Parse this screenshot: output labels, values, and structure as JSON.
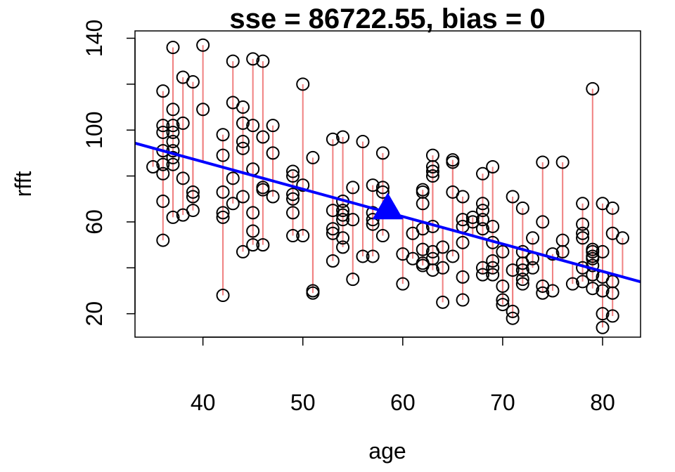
{
  "chart_data": {
    "type": "scatter",
    "title": "sse = 86722.55, bias = 0",
    "xlabel": "age",
    "ylabel": "rfft",
    "xlim": [
      33.2,
      83.8
    ],
    "ylim": [
      9.8,
      143.2
    ],
    "xticks": [
      40,
      50,
      60,
      70,
      80
    ],
    "yticks": [
      20,
      60,
      100,
      140
    ],
    "grid": false,
    "colors": {
      "points": "#000000",
      "residuals": "#f08080",
      "fit_line": "#0000ff",
      "centroid": "#0000ff"
    },
    "fit_line": {
      "x": [
        33.2,
        83.8
      ],
      "y": [
        94.3,
        33.9
      ]
    },
    "centroid": {
      "x": 58.5,
      "y": 64.8,
      "marker": "filled-triangle"
    },
    "points": [
      [
        35,
        84
      ],
      [
        36,
        117
      ],
      [
        36,
        102
      ],
      [
        36,
        99
      ],
      [
        36,
        91
      ],
      [
        36,
        85
      ],
      [
        36,
        81
      ],
      [
        36,
        69
      ],
      [
        36,
        52
      ],
      [
        37,
        136
      ],
      [
        37,
        109
      ],
      [
        37,
        102
      ],
      [
        37,
        99
      ],
      [
        37,
        95
      ],
      [
        37,
        91
      ],
      [
        37,
        88
      ],
      [
        37,
        85
      ],
      [
        37,
        62
      ],
      [
        38,
        123
      ],
      [
        38,
        103
      ],
      [
        38,
        79
      ],
      [
        38,
        63
      ],
      [
        39,
        121
      ],
      [
        39,
        73
      ],
      [
        39,
        71
      ],
      [
        39,
        65
      ],
      [
        40,
        137
      ],
      [
        40,
        109
      ],
      [
        42,
        98
      ],
      [
        42,
        89
      ],
      [
        42,
        73
      ],
      [
        42,
        64
      ],
      [
        42,
        62
      ],
      [
        42,
        28
      ],
      [
        43,
        130
      ],
      [
        43,
        112
      ],
      [
        43,
        79
      ],
      [
        43,
        68
      ],
      [
        44,
        110
      ],
      [
        44,
        103
      ],
      [
        44,
        95
      ],
      [
        44,
        92
      ],
      [
        44,
        71
      ],
      [
        44,
        47
      ],
      [
        45,
        131
      ],
      [
        45,
        102
      ],
      [
        45,
        83
      ],
      [
        45,
        64
      ],
      [
        45,
        56
      ],
      [
        45,
        50
      ],
      [
        46,
        130
      ],
      [
        46,
        97
      ],
      [
        46,
        75
      ],
      [
        46,
        74
      ],
      [
        46,
        50
      ],
      [
        47,
        102
      ],
      [
        47,
        90
      ],
      [
        47,
        71
      ],
      [
        49,
        82
      ],
      [
        49,
        80
      ],
      [
        49,
        72
      ],
      [
        49,
        70
      ],
      [
        49,
        64
      ],
      [
        49,
        54
      ],
      [
        50,
        120
      ],
      [
        50,
        76
      ],
      [
        50,
        54
      ],
      [
        51,
        88
      ],
      [
        51,
        30
      ],
      [
        51,
        29
      ],
      [
        53,
        96
      ],
      [
        53,
        65
      ],
      [
        53,
        57
      ],
      [
        53,
        55
      ],
      [
        53,
        43
      ],
      [
        54,
        97
      ],
      [
        54,
        69
      ],
      [
        54,
        65
      ],
      [
        54,
        63
      ],
      [
        54,
        61
      ],
      [
        54,
        53
      ],
      [
        54,
        49
      ],
      [
        55,
        75
      ],
      [
        55,
        61
      ],
      [
        55,
        35
      ],
      [
        56,
        95
      ],
      [
        56,
        45
      ],
      [
        57,
        76
      ],
      [
        57,
        64
      ],
      [
        57,
        61
      ],
      [
        57,
        59
      ],
      [
        57,
        45
      ],
      [
        58,
        90
      ],
      [
        58,
        75
      ],
      [
        58,
        73
      ],
      [
        58,
        54
      ],
      [
        60,
        46
      ],
      [
        60,
        33
      ],
      [
        61,
        55
      ],
      [
        61,
        44
      ],
      [
        62,
        74
      ],
      [
        62,
        73
      ],
      [
        62,
        68
      ],
      [
        62,
        57
      ],
      [
        62,
        48
      ],
      [
        62,
        42
      ],
      [
        62,
        41
      ],
      [
        63,
        89
      ],
      [
        63,
        84
      ],
      [
        63,
        82
      ],
      [
        63,
        80
      ],
      [
        63,
        58
      ],
      [
        63,
        47
      ],
      [
        63,
        44
      ],
      [
        63,
        39
      ],
      [
        64,
        49
      ],
      [
        64,
        40
      ],
      [
        64,
        25
      ],
      [
        65,
        87
      ],
      [
        65,
        86
      ],
      [
        65,
        73
      ],
      [
        65,
        45
      ],
      [
        66,
        71
      ],
      [
        66,
        61
      ],
      [
        66,
        58
      ],
      [
        66,
        51
      ],
      [
        66,
        36
      ],
      [
        66,
        26
      ],
      [
        67,
        62
      ],
      [
        67,
        60
      ],
      [
        68,
        81
      ],
      [
        68,
        68
      ],
      [
        68,
        65
      ],
      [
        68,
        61
      ],
      [
        68,
        57
      ],
      [
        68,
        40
      ],
      [
        68,
        37
      ],
      [
        69,
        84
      ],
      [
        69,
        58
      ],
      [
        69,
        51
      ],
      [
        69,
        43
      ],
      [
        69,
        40
      ],
      [
        69,
        37
      ],
      [
        70,
        47
      ],
      [
        70,
        32
      ],
      [
        70,
        26
      ],
      [
        70,
        24
      ],
      [
        71,
        71
      ],
      [
        71,
        39
      ],
      [
        71,
        21
      ],
      [
        71,
        18
      ],
      [
        72,
        66
      ],
      [
        72,
        47
      ],
      [
        72,
        42
      ],
      [
        72,
        39
      ],
      [
        72,
        35
      ],
      [
        72,
        33
      ],
      [
        73,
        53
      ],
      [
        73,
        44
      ],
      [
        73,
        40
      ],
      [
        74,
        86
      ],
      [
        74,
        60
      ],
      [
        74,
        32
      ],
      [
        74,
        29
      ],
      [
        75,
        46
      ],
      [
        75,
        30
      ],
      [
        76,
        86
      ],
      [
        76,
        52
      ],
      [
        76,
        47
      ],
      [
        77,
        33
      ],
      [
        78,
        68
      ],
      [
        78,
        59
      ],
      [
        78,
        55
      ],
      [
        78,
        53
      ],
      [
        78,
        40
      ],
      [
        78,
        34
      ],
      [
        79,
        118
      ],
      [
        79,
        48
      ],
      [
        79,
        47
      ],
      [
        79,
        45
      ],
      [
        79,
        44
      ],
      [
        79,
        41
      ],
      [
        79,
        37
      ],
      [
        79,
        31
      ],
      [
        80,
        68
      ],
      [
        80,
        47
      ],
      [
        80,
        36
      ],
      [
        80,
        30
      ],
      [
        80,
        20
      ],
      [
        80,
        14
      ],
      [
        81,
        66
      ],
      [
        81,
        55
      ],
      [
        81,
        34
      ],
      [
        81,
        29
      ],
      [
        81,
        19
      ],
      [
        82,
        53
      ]
    ]
  }
}
